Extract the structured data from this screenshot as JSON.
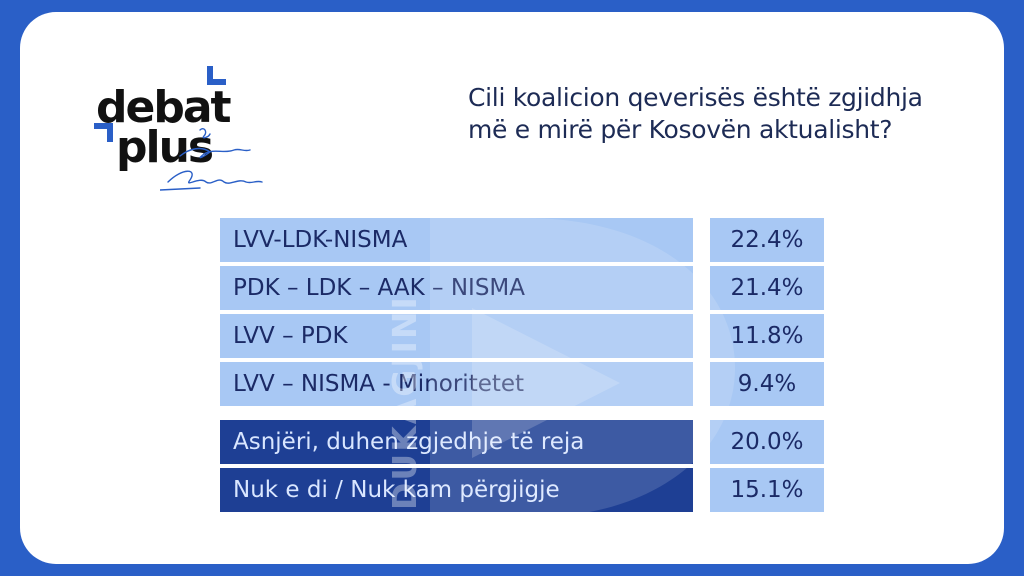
{
  "brand": {
    "line1": "debat",
    "line2": "plus",
    "signature": "me Ermal Panduri",
    "accent_color": "#2a5fc7"
  },
  "question": {
    "line1": "Cili koalicion qeverisës është zgjidhja",
    "line2": "më e mirë për Kosovën aktualisht?"
  },
  "watermark_text": "DUKAGJINI",
  "results": [
    {
      "label": "LVV-LDK-NISMA",
      "value": "22.4%",
      "style": "light"
    },
    {
      "label": "PDK – LDK – AAK – NISMA",
      "value": "21.4%",
      "style": "light"
    },
    {
      "label": "LVV – PDK",
      "value": "11.8%",
      "style": "light"
    },
    {
      "label": "LVV – NISMA - Minoritetet",
      "value": "9.4%",
      "style": "light"
    },
    {
      "label": "Asnjëri, duhen zgjedhje të reja",
      "value": "20.0%",
      "style": "dark"
    },
    {
      "label": "Nuk e di / Nuk kam përgjigje",
      "value": "15.1%",
      "style": "dark"
    }
  ]
}
